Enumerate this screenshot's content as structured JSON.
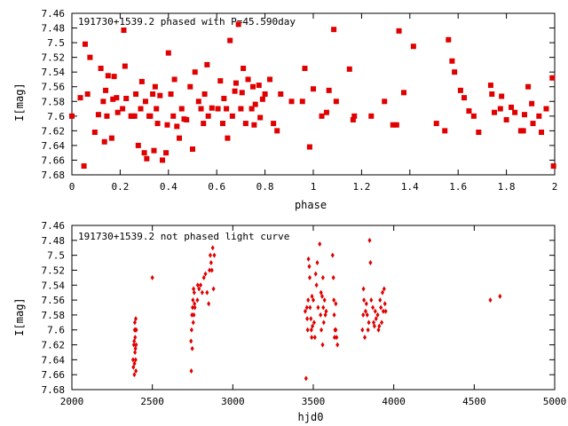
{
  "colors": {
    "points": "#e00000",
    "axes": "#000000",
    "background": "#ffffff"
  },
  "chart_data": [
    {
      "type": "scatter",
      "title": "191730+1539.2 phased with P=45.590day",
      "xlabel": "phase",
      "ylabel": "I[mag]",
      "xlim": [
        0,
        2
      ],
      "ylim": [
        7.46,
        7.68
      ],
      "y_inverted": true,
      "grid": false,
      "marker": "filled-square",
      "x_ticks": [
        "0",
        "0.2",
        "0.4",
        "0.6",
        "0.8",
        "1",
        "1.2",
        "1.4",
        "1.6",
        "1.8",
        "2"
      ],
      "y_ticks": [
        "7.46",
        "7.48",
        "7.5",
        "7.52",
        "7.54",
        "7.56",
        "7.58",
        "7.6",
        "7.62",
        "7.64",
        "7.66",
        "7.68"
      ],
      "x": [
        0.0,
        0.035,
        0.05,
        0.055,
        0.065,
        0.075,
        0.095,
        0.11,
        0.12,
        0.13,
        0.135,
        0.14,
        0.145,
        0.15,
        0.165,
        0.17,
        0.175,
        0.185,
        0.19,
        0.21,
        0.215,
        0.22,
        0.225,
        0.245,
        0.25,
        0.26,
        0.265,
        0.275,
        0.285,
        0.29,
        0.3,
        0.305,
        0.31,
        0.32,
        0.325,
        0.335,
        0.34,
        0.345,
        0.35,
        0.355,
        0.365,
        0.375,
        0.39,
        0.395,
        0.4,
        0.41,
        0.42,
        0.425,
        0.435,
        0.445,
        0.455,
        0.465,
        0.475,
        0.49,
        0.5,
        0.51,
        0.525,
        0.535,
        0.545,
        0.55,
        0.56,
        0.565,
        0.58,
        0.605,
        0.615,
        0.625,
        0.63,
        0.64,
        0.645,
        0.655,
        0.665,
        0.675,
        0.68,
        0.69,
        0.7,
        0.705,
        0.71,
        0.72,
        0.73,
        0.745,
        0.75,
        0.755,
        0.76,
        0.775,
        0.78,
        0.79,
        0.8,
        0.82,
        0.835,
        0.85,
        0.865,
        0.91,
        0.955,
        0.965,
        0.985,
        1.0,
        1.035,
        1.055,
        1.065,
        1.085,
        1.095,
        1.15,
        1.165,
        1.17,
        1.24,
        1.295,
        1.33,
        1.345,
        1.355,
        1.375,
        1.415,
        1.51,
        1.545,
        1.56,
        1.575,
        1.585,
        1.61,
        1.625,
        1.645,
        1.665,
        1.685,
        1.735,
        1.74,
        1.75,
        1.775,
        1.78,
        1.8,
        1.82,
        1.835,
        1.86,
        1.87,
        1.875,
        1.89,
        1.905,
        1.91,
        1.935,
        1.945,
        1.965,
        1.99,
        1.995
      ],
      "y": [
        7.6,
        7.575,
        7.668,
        7.502,
        7.57,
        7.52,
        7.622,
        7.598,
        7.535,
        7.58,
        7.635,
        7.565,
        7.6,
        7.545,
        7.63,
        7.577,
        7.546,
        7.575,
        7.595,
        7.59,
        7.483,
        7.532,
        7.576,
        7.6,
        7.6,
        7.6,
        7.57,
        7.64,
        7.59,
        7.553,
        7.65,
        7.58,
        7.658,
        7.6,
        7.6,
        7.57,
        7.647,
        7.56,
        7.59,
        7.61,
        7.572,
        7.66,
        7.65,
        7.612,
        7.514,
        7.57,
        7.6,
        7.55,
        7.614,
        7.63,
        7.59,
        7.604,
        7.605,
        7.56,
        7.645,
        7.54,
        7.58,
        7.59,
        7.61,
        7.57,
        7.53,
        7.6,
        7.589,
        7.59,
        7.552,
        7.61,
        7.576,
        7.59,
        7.63,
        7.497,
        7.6,
        7.566,
        7.555,
        7.475,
        7.59,
        7.568,
        7.535,
        7.61,
        7.55,
        7.59,
        7.56,
        7.612,
        7.584,
        7.558,
        7.602,
        7.577,
        7.57,
        7.55,
        7.61,
        7.62,
        7.57,
        7.58,
        7.58,
        7.535,
        7.642,
        7.563,
        7.6,
        7.595,
        7.565,
        7.482,
        7.58,
        7.536,
        7.605,
        7.6,
        7.6,
        7.58,
        7.612,
        7.612,
        7.484,
        7.568,
        7.505,
        7.61,
        7.62,
        7.496,
        7.525,
        7.54,
        7.565,
        7.575,
        7.593,
        7.6,
        7.622,
        7.558,
        7.57,
        7.595,
        7.59,
        7.573,
        7.605,
        7.588,
        7.595,
        7.62,
        7.62,
        7.598,
        7.56,
        7.583,
        7.61,
        7.6,
        7.622,
        7.59,
        7.548,
        7.668
      ]
    },
    {
      "type": "scatter",
      "title": "191730+1539.2 not phased light curve",
      "xlabel": "hjd0",
      "ylabel": "I[mag]",
      "xlim": [
        2000,
        5000
      ],
      "ylim": [
        7.46,
        7.68
      ],
      "y_inverted": true,
      "grid": false,
      "marker": "small-diamond",
      "x_ticks": [
        "2000",
        "2500",
        "3000",
        "3500",
        "4000",
        "4500",
        "5000"
      ],
      "y_ticks": [
        "7.46",
        "7.48",
        "7.5",
        "7.52",
        "7.54",
        "7.56",
        "7.58",
        "7.6",
        "7.62",
        "7.64",
        "7.66",
        "7.68"
      ],
      "x": [
        2380,
        2382,
        2385,
        2387,
        2388,
        2389,
        2390,
        2391,
        2392,
        2393,
        2394,
        2395,
        2396,
        2397,
        2398,
        2399,
        2400,
        2500,
        2740,
        2742,
        2744,
        2746,
        2748,
        2750,
        2752,
        2754,
        2756,
        2758,
        2760,
        2762,
        2764,
        2780,
        2782,
        2790,
        2800,
        2810,
        2820,
        2830,
        2840,
        2850,
        2855,
        2860,
        2865,
        2870,
        2875,
        2880,
        2885,
        3450,
        3455,
        3460,
        3462,
        3465,
        3468,
        3470,
        3475,
        3478,
        3480,
        3485,
        3488,
        3490,
        3492,
        3495,
        3500,
        3505,
        3510,
        3515,
        3520,
        3525,
        3530,
        3540,
        3545,
        3548,
        3550,
        3555,
        3558,
        3560,
        3562,
        3565,
        3570,
        3575,
        3580,
        3620,
        3625,
        3628,
        3630,
        3632,
        3635,
        3640,
        3640,
        3645,
        3650,
        3805,
        3810,
        3812,
        3815,
        3820,
        3825,
        3830,
        3835,
        3840,
        3845,
        3850,
        3855,
        3860,
        3870,
        3875,
        3880,
        3885,
        3890,
        3900,
        3905,
        3910,
        3915,
        3920,
        3925,
        3930,
        3935,
        3940,
        3945,
        3950,
        4600,
        4660
      ],
      "y": [
        7.64,
        7.65,
        7.62,
        7.615,
        7.66,
        7.645,
        7.6,
        7.59,
        7.63,
        7.61,
        7.6,
        7.625,
        7.64,
        7.585,
        7.655,
        7.62,
        7.6,
        7.53,
        7.615,
        7.655,
        7.6,
        7.58,
        7.625,
        7.57,
        7.56,
        7.59,
        7.545,
        7.58,
        7.55,
        7.565,
        7.57,
        7.56,
        7.54,
        7.545,
        7.54,
        7.55,
        7.53,
        7.525,
        7.55,
        7.565,
        7.52,
        7.5,
        7.51,
        7.52,
        7.49,
        7.545,
        7.5,
        7.575,
        7.665,
        7.57,
        7.585,
        7.6,
        7.56,
        7.505,
        7.515,
        7.53,
        7.57,
        7.585,
        7.6,
        7.61,
        7.555,
        7.595,
        7.56,
        7.59,
        7.61,
        7.525,
        7.54,
        7.51,
        7.57,
        7.485,
        7.58,
        7.55,
        7.6,
        7.555,
        7.62,
        7.53,
        7.57,
        7.59,
        7.56,
        7.58,
        7.575,
        7.5,
        7.53,
        7.56,
        7.58,
        7.61,
        7.6,
        7.565,
        7.6,
        7.61,
        7.62,
        7.6,
        7.58,
        7.545,
        7.56,
        7.61,
        7.575,
        7.565,
        7.58,
        7.6,
        7.59,
        7.48,
        7.51,
        7.56,
        7.57,
        7.59,
        7.595,
        7.575,
        7.585,
        7.58,
        7.6,
        7.595,
        7.56,
        7.57,
        7.59,
        7.55,
        7.575,
        7.545,
        7.565,
        7.575,
        7.56,
        7.555
      ]
    }
  ]
}
